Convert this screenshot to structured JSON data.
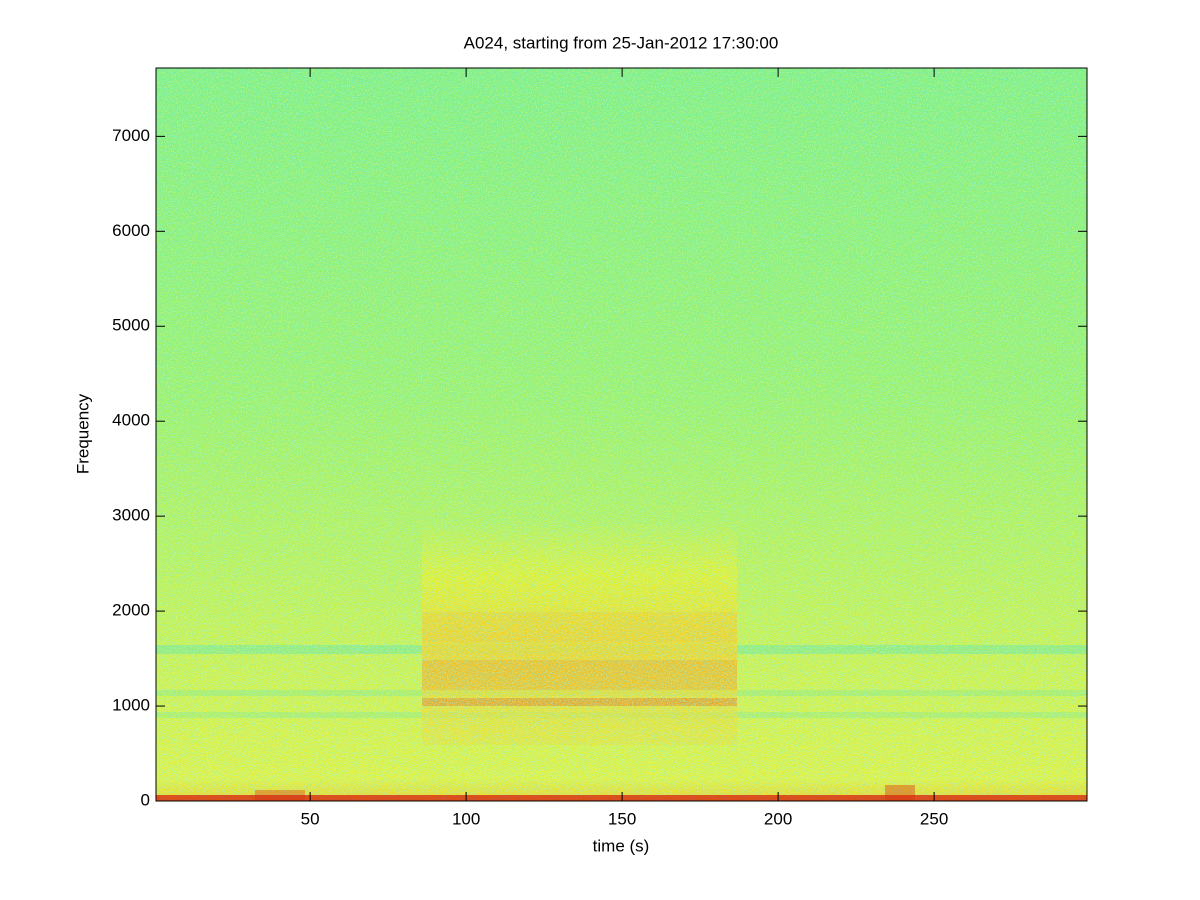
{
  "chart_data": {
    "type": "spectrogram",
    "title": "A024, starting from 25-Jan-2012 17:30:00",
    "x_label": "time (s)",
    "y_label": "Frequency",
    "xlim": [
      0.6,
      299.0
    ],
    "ylim": [
      0,
      7720
    ],
    "xticks": [
      50,
      100,
      150,
      200,
      250
    ],
    "yticks": [
      0,
      1000,
      2000,
      3000,
      4000,
      5000,
      6000,
      7000
    ]
  }
}
